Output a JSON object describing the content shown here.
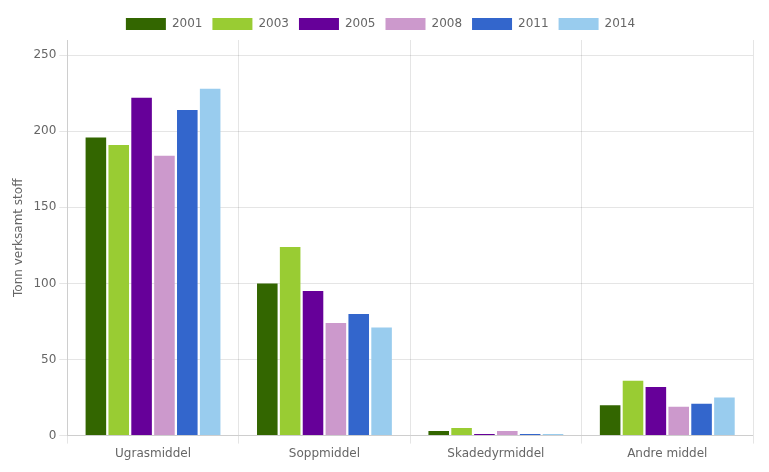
{
  "chart_data": {
    "type": "bar",
    "ylabel": "Tonn verksamt stoff",
    "categories": [
      "Ugrasmiddel",
      "Soppmiddel",
      "Skadedyrmiddel",
      "Andre middel"
    ],
    "series": [
      {
        "name": "2001",
        "color": "#336600",
        "values": [
          196,
          100,
          3,
          20
        ]
      },
      {
        "name": "2003",
        "color": "#99cc33",
        "values": [
          191,
          124,
          5,
          36
        ]
      },
      {
        "name": "2005",
        "color": "#660099",
        "values": [
          222,
          95,
          1,
          32
        ]
      },
      {
        "name": "2008",
        "color": "#cc99cc",
        "values": [
          184,
          74,
          3,
          19
        ]
      },
      {
        "name": "2011",
        "color": "#3366cc",
        "values": [
          214,
          80,
          1,
          21
        ]
      },
      {
        "name": "2014",
        "color": "#99ccee",
        "values": [
          228,
          71,
          1,
          25
        ]
      }
    ],
    "ylim": [
      0,
      260
    ],
    "yticks": [
      0,
      50,
      100,
      150,
      200,
      250
    ],
    "grid": true,
    "legend": "top"
  }
}
